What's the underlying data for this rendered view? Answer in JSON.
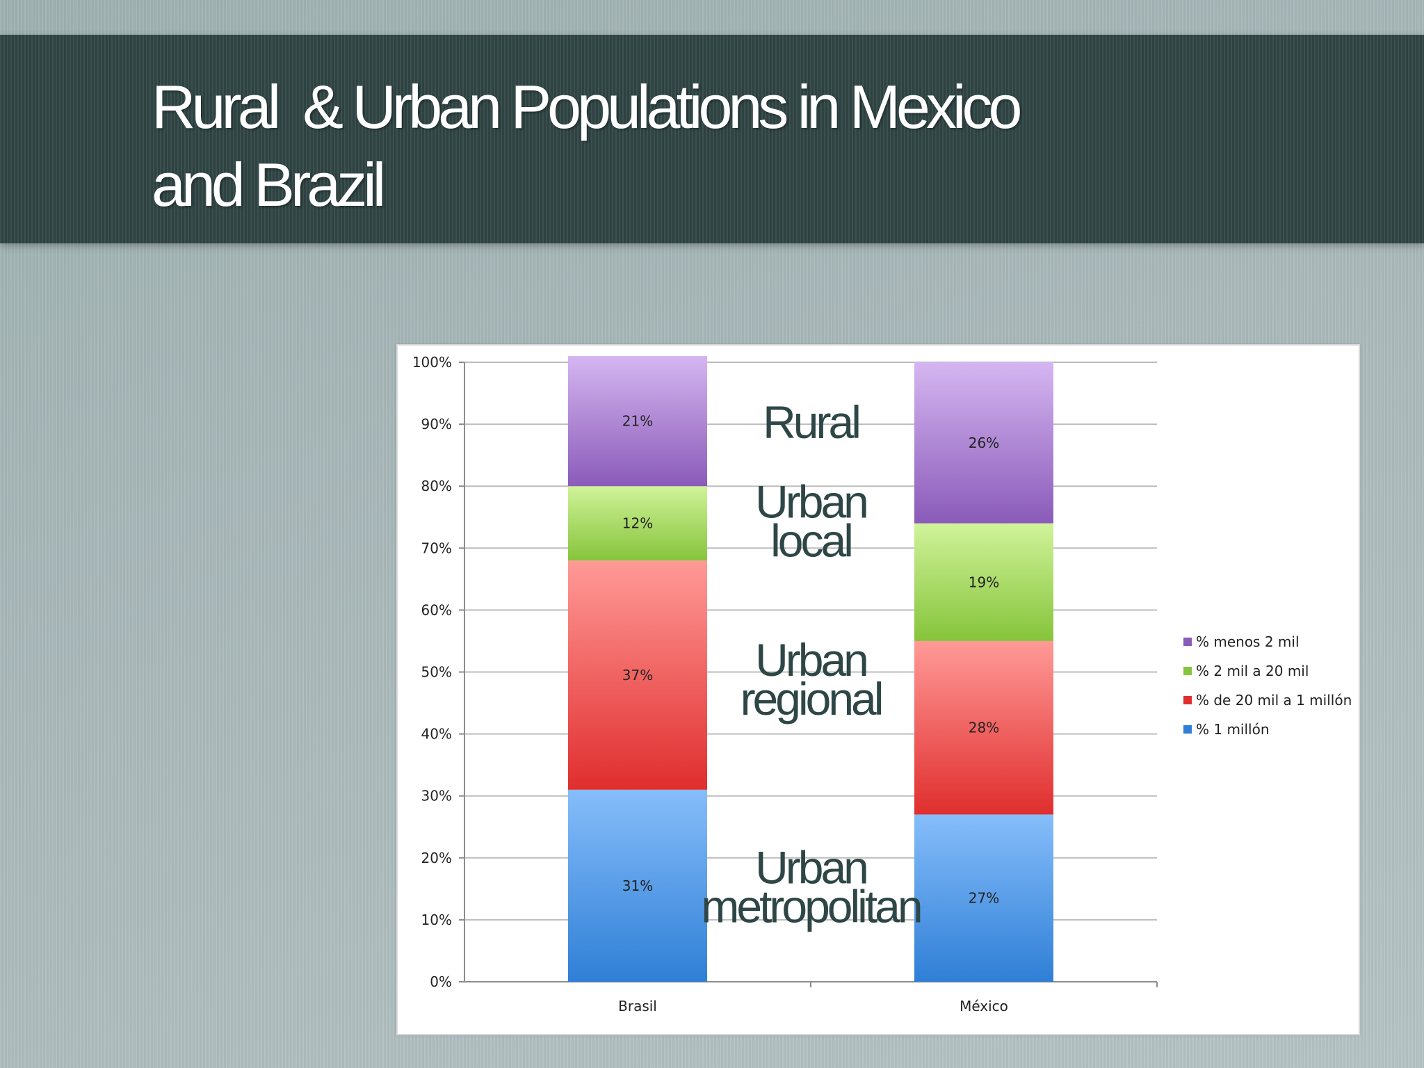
{
  "slide": {
    "title_line1": "Rural  & Urban Populations in Mexico",
    "title_line2": "and Brazil"
  },
  "chart_data": {
    "type": "bar",
    "stacked": true,
    "categories": [
      "Brasil",
      "México"
    ],
    "series": [
      {
        "name": "% 1 millón",
        "values": [
          31,
          27
        ],
        "color_top": "#86bdfa",
        "color_bottom": "#2f7fd6"
      },
      {
        "name": "% de 20 mil a 1 millón",
        "values": [
          37,
          28
        ],
        "color_top": "#ff9a97",
        "color_bottom": "#e02e2e"
      },
      {
        "name": "% 2 mil a 20 mil",
        "values": [
          12,
          19
        ],
        "color_top": "#d0f39a",
        "color_bottom": "#86c43b"
      },
      {
        "name": "% menos 2 mil",
        "values": [
          21,
          26
        ],
        "color_top": "#d5b6f1",
        "color_bottom": "#8a5bb9"
      }
    ],
    "data_labels": [
      [
        "31%",
        "37%",
        "12%",
        "21%"
      ],
      [
        "27%",
        "28%",
        "19%",
        "26%"
      ]
    ],
    "ylim": [
      0,
      100
    ],
    "y_ticks": [
      "0%",
      "10%",
      "20%",
      "30%",
      "40%",
      "50%",
      "60%",
      "70%",
      "80%",
      "90%",
      "100%"
    ],
    "xlabel": "",
    "ylabel": "",
    "grid": true,
    "legend_position": "right",
    "annotations": [
      {
        "text": "Rural",
        "y": 90
      },
      {
        "text": "Urban\nlocal",
        "y": 74
      },
      {
        "text": "Urban\nregional",
        "y": 48.5
      },
      {
        "text": "Urban\nmetropolitan",
        "y": 15
      }
    ],
    "annotation_color": "#2e4646"
  }
}
